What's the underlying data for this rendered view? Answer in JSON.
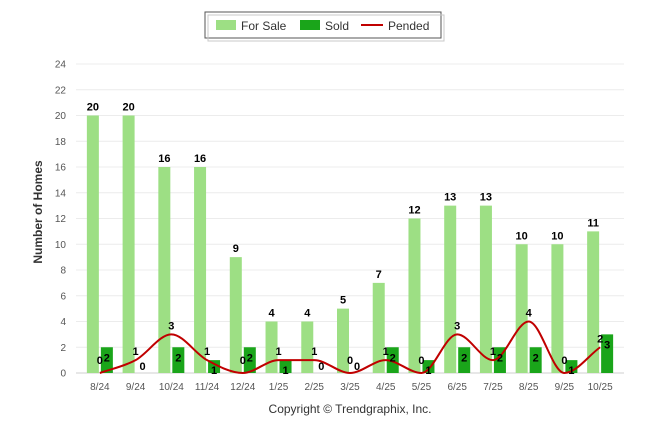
{
  "chart_data": {
    "type": "bar",
    "title": "",
    "xlabel": "",
    "ylabel": "Number of Homes",
    "ylim": [
      0,
      24
    ],
    "yticks": [
      0,
      2,
      4,
      6,
      8,
      10,
      12,
      14,
      16,
      18,
      20,
      22,
      24
    ],
    "grid": true,
    "legend_position": "top-center",
    "categories": [
      "8/24",
      "9/24",
      "10/24",
      "11/24",
      "12/24",
      "1/25",
      "2/25",
      "3/25",
      "4/25",
      "5/25",
      "6/25",
      "7/25",
      "8/25",
      "9/25",
      "10/25"
    ],
    "series": [
      {
        "name": "For Sale",
        "type": "bar",
        "color": "#9ddf84",
        "values": [
          20,
          20,
          16,
          16,
          9,
          4,
          4,
          5,
          7,
          12,
          13,
          13,
          10,
          10,
          11
        ]
      },
      {
        "name": "Sold",
        "type": "bar",
        "color": "#1aa51a",
        "values": [
          2,
          0,
          2,
          1,
          2,
          1,
          0,
          0,
          2,
          1,
          2,
          2,
          2,
          1,
          3
        ]
      },
      {
        "name": "Pended",
        "type": "line",
        "color": "#c00000",
        "values": [
          0,
          1,
          3,
          1,
          0,
          1,
          1,
          0,
          1,
          0,
          3,
          1,
          4,
          0,
          2
        ]
      }
    ],
    "footer": "Copyright © Trendgraphix, Inc."
  }
}
